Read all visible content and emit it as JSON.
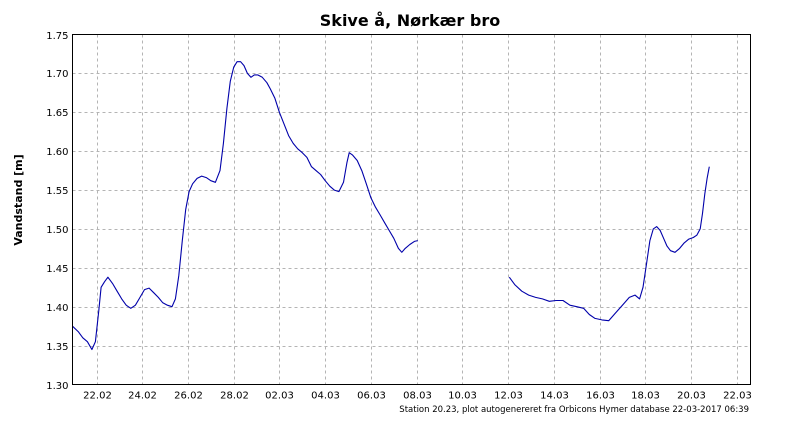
{
  "chart_data": {
    "type": "line",
    "title": "Skive å, Nørkær bro",
    "ylabel": "Vandstand [m]",
    "xlabel": "",
    "footer": "Station 20.23, plot autogenereret fra Orbicons Hymer database 22-03-2017 06:39",
    "x_tick_labels": [
      "22.02",
      "24.02",
      "26.02",
      "28.02",
      "02.03",
      "04.03",
      "06.03",
      "08.03",
      "10.03",
      "12.03",
      "14.03",
      "16.03",
      "18.03",
      "20.03",
      "22.03"
    ],
    "y_tick_labels": [
      "1.30",
      "1.35",
      "1.40",
      "1.45",
      "1.50",
      "1.55",
      "1.60",
      "1.65",
      "1.70",
      "1.75"
    ],
    "ylim": [
      1.3,
      1.75
    ],
    "xlim_days": [
      20.95,
      50.6
    ],
    "grid": true,
    "line_color": "#0000aa",
    "series": [
      {
        "segments": [
          [
            [
              20.95,
              1.375
            ],
            [
              21.2,
              1.368
            ],
            [
              21.4,
              1.36
            ],
            [
              21.6,
              1.355
            ],
            [
              21.8,
              1.345
            ],
            [
              21.95,
              1.355
            ],
            [
              22.1,
              1.395
            ],
            [
              22.2,
              1.425
            ],
            [
              22.35,
              1.432
            ],
            [
              22.5,
              1.438
            ],
            [
              22.7,
              1.43
            ],
            [
              22.9,
              1.42
            ],
            [
              23.1,
              1.41
            ],
            [
              23.3,
              1.402
            ],
            [
              23.5,
              1.398
            ],
            [
              23.7,
              1.402
            ],
            [
              23.9,
              1.412
            ],
            [
              24.1,
              1.422
            ],
            [
              24.3,
              1.424
            ],
            [
              24.5,
              1.418
            ],
            [
              24.7,
              1.412
            ],
            [
              24.9,
              1.405
            ],
            [
              25.1,
              1.402
            ],
            [
              25.3,
              1.4
            ],
            [
              25.45,
              1.41
            ],
            [
              25.6,
              1.44
            ],
            [
              25.75,
              1.485
            ],
            [
              25.9,
              1.525
            ],
            [
              26.05,
              1.548
            ],
            [
              26.2,
              1.558
            ],
            [
              26.4,
              1.565
            ],
            [
              26.6,
              1.568
            ],
            [
              26.8,
              1.566
            ],
            [
              27.0,
              1.562
            ],
            [
              27.2,
              1.56
            ],
            [
              27.4,
              1.575
            ],
            [
              27.55,
              1.61
            ],
            [
              27.7,
              1.655
            ],
            [
              27.85,
              1.69
            ],
            [
              28.0,
              1.708
            ],
            [
              28.15,
              1.715
            ],
            [
              28.3,
              1.715
            ],
            [
              28.45,
              1.71
            ],
            [
              28.6,
              1.7
            ],
            [
              28.75,
              1.695
            ],
            [
              28.9,
              1.698
            ],
            [
              29.05,
              1.698
            ],
            [
              29.25,
              1.695
            ],
            [
              29.45,
              1.688
            ],
            [
              29.6,
              1.68
            ],
            [
              29.8,
              1.668
            ],
            [
              30.0,
              1.65
            ],
            [
              30.2,
              1.635
            ],
            [
              30.4,
              1.62
            ],
            [
              30.6,
              1.61
            ],
            [
              30.8,
              1.603
            ],
            [
              31.0,
              1.598
            ],
            [
              31.2,
              1.592
            ],
            [
              31.4,
              1.58
            ],
            [
              31.6,
              1.575
            ],
            [
              31.8,
              1.57
            ],
            [
              32.0,
              1.562
            ],
            [
              32.2,
              1.555
            ],
            [
              32.4,
              1.55
            ],
            [
              32.6,
              1.548
            ],
            [
              32.8,
              1.56
            ],
            [
              32.95,
              1.585
            ],
            [
              33.05,
              1.598
            ],
            [
              33.2,
              1.595
            ],
            [
              33.4,
              1.588
            ],
            [
              33.6,
              1.575
            ],
            [
              33.8,
              1.558
            ],
            [
              34.0,
              1.54
            ],
            [
              34.2,
              1.528
            ],
            [
              34.4,
              1.518
            ],
            [
              34.6,
              1.508
            ],
            [
              34.8,
              1.498
            ],
            [
              35.0,
              1.488
            ],
            [
              35.2,
              1.475
            ],
            [
              35.35,
              1.47
            ],
            [
              35.5,
              1.475
            ],
            [
              35.7,
              1.48
            ],
            [
              35.9,
              1.484
            ],
            [
              36.05,
              1.485
            ]
          ],
          [
            [
              40.05,
              1.438
            ],
            [
              40.3,
              1.428
            ],
            [
              40.6,
              1.42
            ],
            [
              40.9,
              1.415
            ],
            [
              41.2,
              1.412
            ],
            [
              41.5,
              1.41
            ],
            [
              41.8,
              1.407
            ],
            [
              42.1,
              1.408
            ],
            [
              42.4,
              1.408
            ],
            [
              42.7,
              1.402
            ],
            [
              43.0,
              1.4
            ],
            [
              43.3,
              1.398
            ],
            [
              43.55,
              1.39
            ],
            [
              43.8,
              1.385
            ],
            [
              44.1,
              1.383
            ],
            [
              44.4,
              1.382
            ],
            [
              44.7,
              1.392
            ],
            [
              45.0,
              1.402
            ],
            [
              45.3,
              1.412
            ],
            [
              45.55,
              1.415
            ],
            [
              45.75,
              1.41
            ],
            [
              45.9,
              1.425
            ],
            [
              46.05,
              1.455
            ],
            [
              46.2,
              1.485
            ],
            [
              46.35,
              1.5
            ],
            [
              46.5,
              1.503
            ],
            [
              46.65,
              1.498
            ],
            [
              46.8,
              1.488
            ],
            [
              46.95,
              1.478
            ],
            [
              47.1,
              1.472
            ],
            [
              47.3,
              1.47
            ],
            [
              47.5,
              1.475
            ],
            [
              47.7,
              1.482
            ],
            [
              47.9,
              1.487
            ],
            [
              48.1,
              1.489
            ],
            [
              48.25,
              1.492
            ],
            [
              48.4,
              1.5
            ],
            [
              48.5,
              1.52
            ],
            [
              48.6,
              1.545
            ],
            [
              48.7,
              1.565
            ],
            [
              48.8,
              1.58
            ]
          ]
        ]
      }
    ]
  }
}
